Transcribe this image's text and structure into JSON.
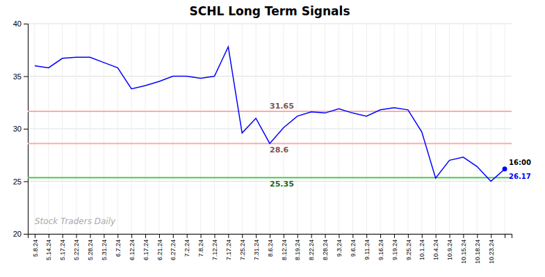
{
  "chart_data": {
    "type": "line",
    "title": "SCHL Long Term Signals",
    "categories": [
      "5.8.24",
      "5.14.24",
      "5.17.24",
      "5.22.24",
      "5.28.24",
      "5.31.24",
      "6.7.24",
      "6.12.24",
      "6.17.24",
      "6.21.24",
      "6.27.24",
      "7.2.24",
      "7.8.24",
      "7.12.24",
      "7.17.24",
      "7.25.24",
      "7.31.24",
      "8.6.24",
      "8.12.24",
      "8.19.24",
      "8.22.24",
      "8.28.24",
      "9.3.24",
      "9.6.24",
      "9.11.24",
      "9.16.24",
      "9.19.24",
      "9.25.24",
      "10.1.24",
      "10.4.24",
      "10.9.24",
      "10.15.24",
      "10.18.24",
      "10.23.24",
      null
    ],
    "series": [
      {
        "color": "#0000ff",
        "values": [
          36.0,
          35.8,
          36.7,
          36.8,
          36.8,
          36.3,
          35.8,
          33.8,
          34.1,
          34.5,
          35.0,
          35.0,
          34.8,
          35.0,
          37.8,
          29.6,
          31.0,
          28.6,
          30.1,
          31.2,
          31.6,
          31.5,
          31.9,
          31.5,
          31.2,
          31.8,
          32.0,
          31.8,
          29.7,
          25.3,
          27.0,
          27.3,
          26.4,
          25.0,
          26.17
        ]
      }
    ],
    "hlines": [
      {
        "value": 31.65,
        "label": "31.65",
        "color": "#ffaaaa"
      },
      {
        "value": 28.6,
        "label": "28.6",
        "color": "#ffaaaa"
      },
      {
        "value": 25.35,
        "label": "25.35",
        "color": "#44cc44"
      }
    ],
    "last_point": {
      "label": "16:00",
      "value": 26.17
    },
    "watermark": "Stock Traders Daily",
    "ylim": [
      20,
      40
    ],
    "yticks": [
      20,
      25,
      30,
      35,
      40
    ],
    "grid": true
  }
}
